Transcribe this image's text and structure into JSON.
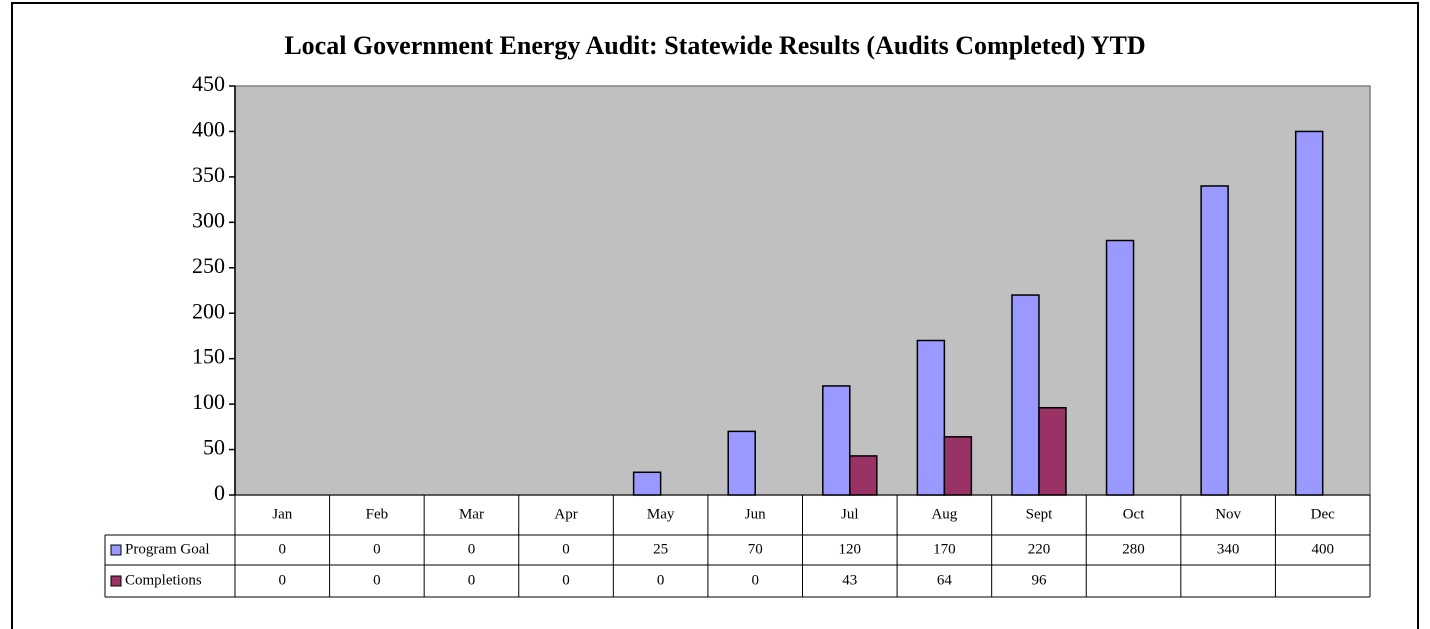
{
  "chart_data": {
    "type": "bar",
    "title": "Local Government Energy Audit: Statewide Results (Audits Completed) YTD",
    "categories": [
      "Jan",
      "Feb",
      "Mar",
      "Apr",
      "May",
      "Jun",
      "Jul",
      "Aug",
      "Sept",
      "Oct",
      "Nov",
      "Dec"
    ],
    "series": [
      {
        "name": "Program Goal",
        "color": "#9999ff",
        "values": [
          0,
          0,
          0,
          0,
          25,
          70,
          120,
          170,
          220,
          280,
          340,
          400
        ]
      },
      {
        "name": "Completions",
        "color": "#993366",
        "values": [
          0,
          0,
          0,
          0,
          0,
          0,
          43,
          64,
          96,
          null,
          null,
          null
        ]
      }
    ],
    "ylim": [
      0,
      450
    ],
    "yticks": [
      0,
      50,
      100,
      150,
      200,
      250,
      300,
      350,
      400,
      450
    ],
    "grid": false
  }
}
